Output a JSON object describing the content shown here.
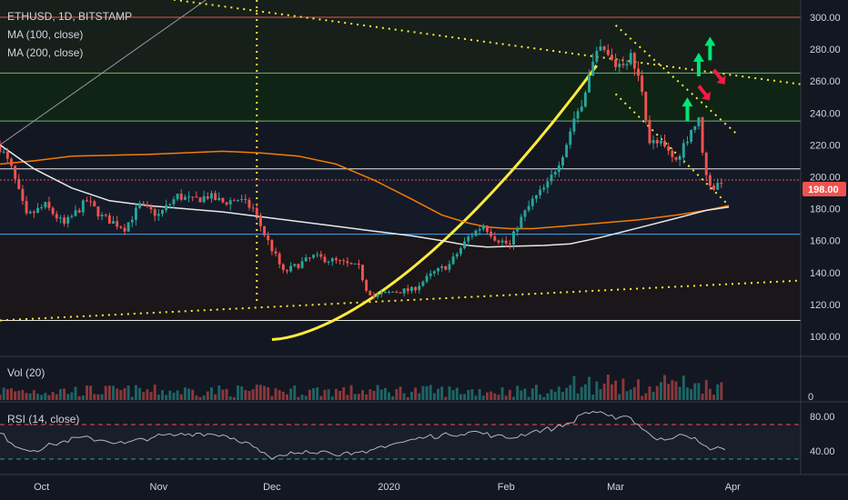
{
  "header": {
    "symbol": "ETHUSD, 1D, BITSTAMP",
    "ma100": "MA (100, close)",
    "ma200": "MA (200, close)"
  },
  "price_badge": "198.00",
  "volume_pane": {
    "label": "Vol (20)",
    "axis_label": "0"
  },
  "rsi_pane": {
    "label": "RSI (14, close)",
    "ticks": [
      "80.00",
      "40.00"
    ],
    "upper": 70,
    "lower": 30
  },
  "colors": {
    "background": "#131722",
    "up": "#26a69a",
    "down": "#ef5350",
    "ma100": "#e8e8e8",
    "ma200": "#f57c00",
    "trendline": "#ffeb3b",
    "fib_line": "#66bb6a",
    "level_blue": "#42a5f5",
    "level_red": "#ef5350",
    "arrow_up": "#00e676",
    "arrow_down": "#ff1744"
  },
  "chart_data": {
    "type": "candlestick",
    "title": "ETHUSD, 1D, BITSTAMP",
    "x_ticks": [
      "Oct",
      "Nov",
      "Dec",
      "2020",
      "Feb",
      "Mar",
      "Apr"
    ],
    "y_ticks": [
      "300.00",
      "280.00",
      "260.00",
      "240.00",
      "220.00",
      "200.00",
      "180.00",
      "160.00",
      "140.00",
      "120.00",
      "100.00"
    ],
    "ylim": [
      100,
      300
    ],
    "x_range_days": [
      -9,
      203
    ],
    "x_tick_days": [
      2,
      33,
      63,
      94,
      125,
      154,
      185
    ],
    "last_price": 198,
    "waypoints": [
      [
        -9,
        219
      ],
      [
        -6,
        205
      ],
      [
        -2,
        175
      ],
      [
        3,
        182
      ],
      [
        8,
        170
      ],
      [
        14,
        185
      ],
      [
        18,
        175
      ],
      [
        24,
        168
      ],
      [
        28,
        182
      ],
      [
        33,
        176
      ],
      [
        38,
        188
      ],
      [
        42,
        185
      ],
      [
        46,
        188
      ],
      [
        50,
        184
      ],
      [
        54,
        186
      ],
      [
        58,
        180
      ],
      [
        61,
        164
      ],
      [
        64,
        150
      ],
      [
        66,
        140
      ],
      [
        70,
        145
      ],
      [
        74,
        150
      ],
      [
        80,
        147
      ],
      [
        86,
        143
      ],
      [
        88,
        130
      ],
      [
        90,
        125
      ],
      [
        95,
        128
      ],
      [
        100,
        129
      ],
      [
        106,
        140
      ],
      [
        110,
        145
      ],
      [
        115,
        162
      ],
      [
        119,
        170
      ],
      [
        122,
        162
      ],
      [
        126,
        157
      ],
      [
        128,
        170
      ],
      [
        132,
        185
      ],
      [
        136,
        195
      ],
      [
        140,
        215
      ],
      [
        144,
        240
      ],
      [
        148,
        270
      ],
      [
        150,
        280
      ],
      [
        154,
        270
      ],
      [
        158,
        275
      ],
      [
        161,
        255
      ],
      [
        163,
        222
      ],
      [
        166,
        220
      ],
      [
        170,
        210
      ],
      [
        174,
        230
      ],
      [
        176,
        235
      ],
      [
        178,
        200
      ],
      [
        180,
        193
      ],
      [
        182,
        198
      ]
    ],
    "ma100": [
      [
        -9,
        220
      ],
      [
        0,
        205
      ],
      [
        10,
        193
      ],
      [
        20,
        185
      ],
      [
        30,
        182
      ],
      [
        40,
        180
      ],
      [
        50,
        178
      ],
      [
        60,
        175
      ],
      [
        70,
        172
      ],
      [
        80,
        169
      ],
      [
        90,
        166
      ],
      [
        100,
        163
      ],
      [
        108,
        160
      ],
      [
        115,
        157
      ],
      [
        120,
        156
      ],
      [
        128,
        156.5
      ],
      [
        135,
        157
      ],
      [
        142,
        158
      ],
      [
        150,
        162
      ],
      [
        160,
        168
      ],
      [
        170,
        174
      ],
      [
        178,
        179
      ],
      [
        184,
        181
      ]
    ],
    "ma200": [
      [
        -9,
        208
      ],
      [
        0,
        210
      ],
      [
        10,
        213
      ],
      [
        30,
        214
      ],
      [
        50,
        216
      ],
      [
        60,
        215
      ],
      [
        70,
        213
      ],
      [
        80,
        208
      ],
      [
        90,
        198
      ],
      [
        100,
        186
      ],
      [
        108,
        176
      ],
      [
        115,
        171
      ],
      [
        120,
        168.5
      ],
      [
        126,
        167.5
      ],
      [
        132,
        167.5
      ],
      [
        140,
        169
      ],
      [
        150,
        171
      ],
      [
        160,
        173
      ],
      [
        170,
        176
      ],
      [
        178,
        179
      ],
      [
        184,
        182
      ]
    ],
    "rsi": [
      [
        -9,
        60
      ],
      [
        -4,
        43
      ],
      [
        0,
        40
      ],
      [
        5,
        47
      ],
      [
        12,
        55
      ],
      [
        18,
        52
      ],
      [
        24,
        48
      ],
      [
        32,
        56
      ],
      [
        38,
        58
      ],
      [
        44,
        60
      ],
      [
        50,
        58
      ],
      [
        56,
        50
      ],
      [
        60,
        38
      ],
      [
        63,
        30
      ],
      [
        66,
        34
      ],
      [
        72,
        40
      ],
      [
        78,
        38
      ],
      [
        84,
        35
      ],
      [
        88,
        37
      ],
      [
        92,
        45
      ],
      [
        98,
        50
      ],
      [
        104,
        56
      ],
      [
        110,
        58
      ],
      [
        116,
        62
      ],
      [
        122,
        57
      ],
      [
        126,
        54
      ],
      [
        132,
        62
      ],
      [
        138,
        66
      ],
      [
        142,
        72
      ],
      [
        146,
        84
      ],
      [
        150,
        85
      ],
      [
        154,
        76
      ],
      [
        158,
        78
      ],
      [
        160,
        70
      ],
      [
        164,
        55
      ],
      [
        168,
        53
      ],
      [
        172,
        58
      ],
      [
        175,
        55
      ],
      [
        178,
        45
      ],
      [
        180,
        42
      ],
      [
        183,
        41
      ]
    ],
    "horizontal_levels": [
      {
        "price": 300,
        "color": "#ef5350"
      },
      {
        "price": 265,
        "color": "#66bb6a"
      },
      {
        "price": 235,
        "color": "#66bb6a"
      },
      {
        "price": 205,
        "color": "#e8e8e8"
      },
      {
        "price": 198,
        "color": "#ef5350",
        "dashed": true
      },
      {
        "price": 164,
        "color": "#42a5f5"
      },
      {
        "price": 110,
        "color": "#e8e8e8"
      }
    ],
    "dotted_trendlines": [
      {
        "from": [
          37,
          311
        ],
        "to": [
          203,
          258
        ]
      },
      {
        "from": [
          154,
          295
        ],
        "to": [
          186,
          227
        ]
      },
      {
        "from": [
          154,
          252
        ],
        "to": [
          184,
          182
        ]
      },
      {
        "from": [
          -9,
          110
        ],
        "to": [
          203,
          135
        ]
      }
    ],
    "vertical_dotted_day": 59,
    "arrows": [
      {
        "day": 173,
        "price": 235,
        "dir": "up"
      },
      {
        "day": 176,
        "price": 263,
        "dir": "up"
      },
      {
        "day": 179,
        "price": 273,
        "dir": "up"
      },
      {
        "day": 176,
        "price": 257,
        "dir": "down"
      },
      {
        "day": 180,
        "price": 267,
        "dir": "down"
      }
    ]
  }
}
